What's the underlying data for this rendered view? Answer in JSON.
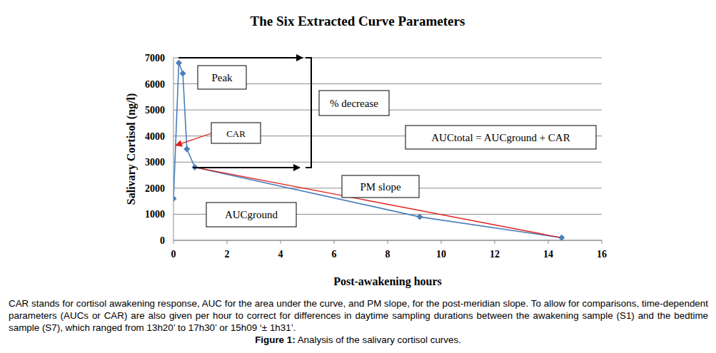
{
  "chart_data": {
    "type": "line",
    "title": "The Six Extracted Curve Parameters",
    "x_label": "Post-awakening hours",
    "y_label": "Salivary Cortisol (ng/l)",
    "x": [
      0,
      0.2,
      0.35,
      0.5,
      0.8,
      9.2,
      14.5
    ],
    "values": [
      1600,
      6800,
      6400,
      3500,
      2800,
      900,
      100
    ],
    "color": "#4a7ebb",
    "marker": "diamond",
    "xlim": [
      0,
      16
    ],
    "ylim": [
      0,
      7000
    ],
    "xticks": [
      0,
      2,
      4,
      6,
      8,
      10,
      12,
      14,
      16
    ],
    "yticks": [
      0,
      1000,
      2000,
      3000,
      4000,
      5000,
      6000,
      7000
    ],
    "grid": true,
    "annotations": [
      "Peak",
      "CAR",
      "% decrease",
      "AUCtotal = AUCground + CAR",
      "PM slope",
      "AUCground"
    ],
    "caption": "CAR stands for cortisol awakening response, AUC for the area under the curve, and PM slope, for the post-meridian slope. To allow for comparisons, time-dependent parameters (AUCs or CAR) are also given per hour to correct for differences in daytime sampling durations between the awakening sample (S1) and the bedtime sample (S7), which ranged from 13h20’ to 17h30’ or 15h09 ‘± 1h31’.",
    "figure_label": "Figure 1:",
    "figure_title": "Analysis of the salivary cortisol curves."
  }
}
